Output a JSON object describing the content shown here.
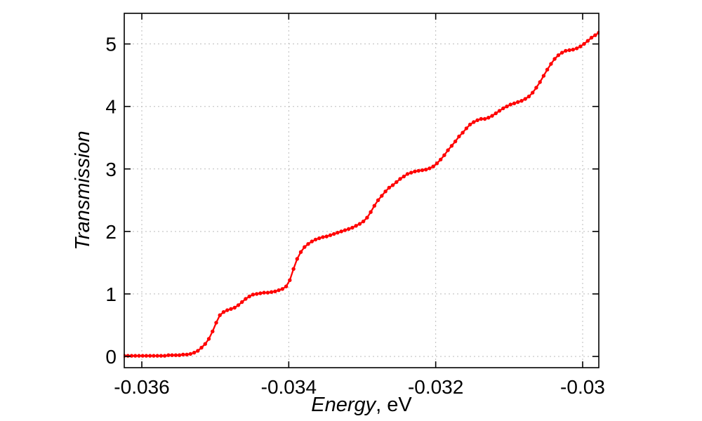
{
  "chart_data": {
    "type": "line",
    "title": "",
    "xlabel_italic": "Energy",
    "xlabel_unit": ", eV",
    "ylabel": "Transmission",
    "legend": "none",
    "grid": true,
    "xlim": [
      -0.036239,
      -0.02978
    ],
    "ylim": [
      -0.18,
      5.49
    ],
    "x_ticks": [
      {
        "value": -0.036,
        "label": "-0.036"
      },
      {
        "value": -0.034,
        "label": "-0.034"
      },
      {
        "value": -0.032,
        "label": "-0.032"
      },
      {
        "value": -0.03,
        "label": "-0.03"
      }
    ],
    "y_ticks": [
      {
        "value": 0,
        "label": "0"
      },
      {
        "value": 1,
        "label": "1"
      },
      {
        "value": 2,
        "label": "2"
      },
      {
        "value": 3,
        "label": "3"
      },
      {
        "value": 4,
        "label": "4"
      },
      {
        "value": 5,
        "label": "5"
      }
    ],
    "colors": {
      "series": "#ff0000",
      "axis": "#000000",
      "grid": "#bbbbbb",
      "background": "#ffffff"
    },
    "series": [
      {
        "name": "Transmission",
        "color": "#ff0000",
        "marker": "circle",
        "x_start": -0.036239,
        "x_step": 5.007e-05,
        "values": [
          0.01,
          0.01,
          0.01,
          0.01,
          0.01,
          0.01,
          0.01,
          0.01,
          0.01,
          0.01,
          0.01,
          0.01,
          0.02,
          0.02,
          0.02,
          0.02,
          0.03,
          0.03,
          0.04,
          0.06,
          0.09,
          0.14,
          0.2,
          0.28,
          0.4,
          0.54,
          0.66,
          0.71,
          0.74,
          0.76,
          0.78,
          0.82,
          0.87,
          0.92,
          0.96,
          0.99,
          1.0,
          1.01,
          1.02,
          1.02,
          1.03,
          1.04,
          1.06,
          1.08,
          1.12,
          1.22,
          1.4,
          1.56,
          1.67,
          1.75,
          1.8,
          1.84,
          1.87,
          1.89,
          1.91,
          1.92,
          1.94,
          1.96,
          1.98,
          2.0,
          2.02,
          2.04,
          2.06,
          2.09,
          2.12,
          2.16,
          2.22,
          2.31,
          2.41,
          2.5,
          2.57,
          2.64,
          2.7,
          2.74,
          2.79,
          2.84,
          2.88,
          2.92,
          2.94,
          2.96,
          2.97,
          2.98,
          2.99,
          3.01,
          3.04,
          3.09,
          3.15,
          3.22,
          3.3,
          3.37,
          3.44,
          3.52,
          3.58,
          3.65,
          3.71,
          3.75,
          3.78,
          3.8,
          3.8,
          3.82,
          3.85,
          3.89,
          3.93,
          3.97,
          4.0,
          4.03,
          4.05,
          4.07,
          4.09,
          4.12,
          4.16,
          4.22,
          4.3,
          4.39,
          4.49,
          4.59,
          4.68,
          4.76,
          4.82,
          4.86,
          4.89,
          4.9,
          4.91,
          4.93,
          4.96,
          5.0,
          5.05,
          5.1,
          5.14,
          5.18
        ]
      }
    ]
  }
}
